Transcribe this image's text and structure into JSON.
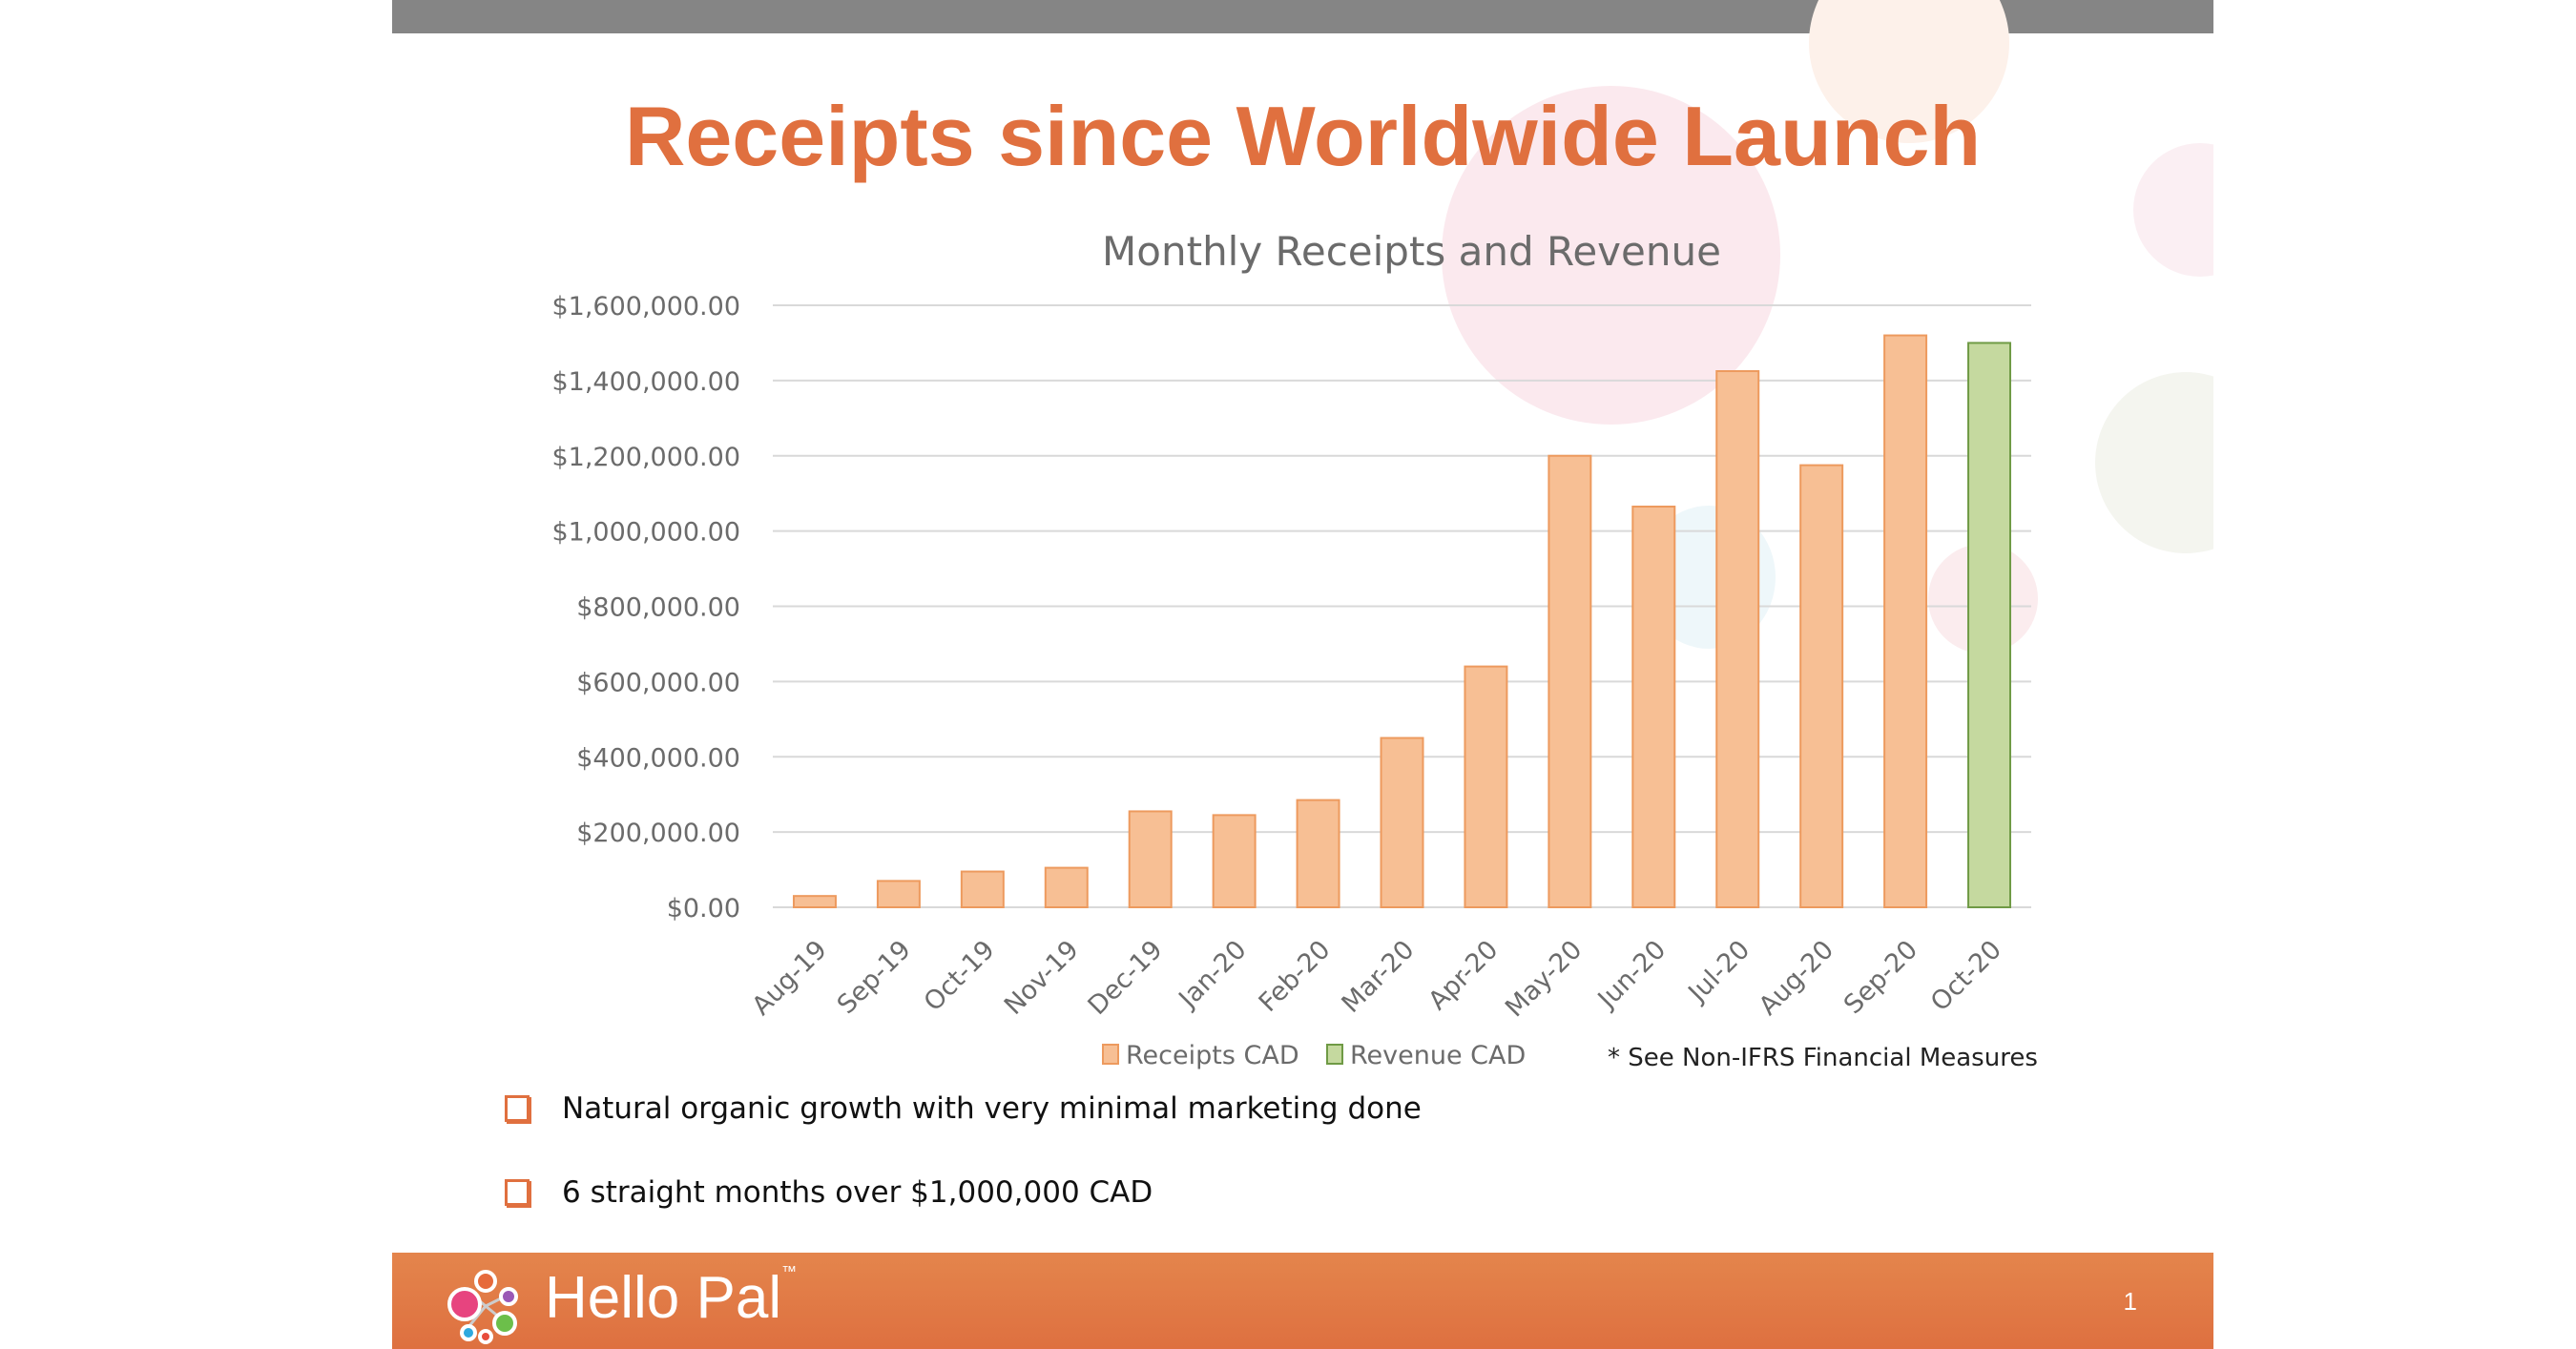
{
  "slide": {
    "title": "Receipts since Worldwide Launch",
    "footnote": "* See Non-IFRS Financial Measures",
    "bullets": [
      "Natural organic growth with very minimal marketing done",
      "6 straight months over $1,000,000 CAD"
    ],
    "brand": "Hello Pal",
    "trademark": "™",
    "page_number": "1",
    "colors": {
      "accent": "#e0703f",
      "receipts": "#f7bf94",
      "receipts_border": "#ed9a5e",
      "revenue": "#c5d99f",
      "revenue_border": "#6f9a45",
      "footer": "#e27b46"
    }
  },
  "chart_data": {
    "type": "bar",
    "title": "Monthly Receipts and Revenue",
    "categories": [
      "Aug-19",
      "Sep-19",
      "Oct-19",
      "Nov-19",
      "Dec-19",
      "Jan-20",
      "Feb-20",
      "Mar-20",
      "Apr-20",
      "May-20",
      "Jun-20",
      "Jul-20",
      "Aug-20",
      "Sep-20",
      "Oct-20"
    ],
    "series": [
      {
        "name": "Receipts CAD",
        "values": [
          30000,
          70000,
          95000,
          105000,
          255000,
          245000,
          285000,
          450000,
          640000,
          1200000,
          1065000,
          1425000,
          1175000,
          1520000,
          null
        ]
      },
      {
        "name": "Revenue CAD",
        "values": [
          null,
          null,
          null,
          null,
          null,
          null,
          null,
          null,
          null,
          null,
          null,
          null,
          null,
          null,
          1500000
        ]
      }
    ],
    "ylim": [
      0,
      1600000
    ],
    "yticks": [
      "$0.00",
      "$200,000.00",
      "$400,000.00",
      "$600,000.00",
      "$800,000.00",
      "$1,000,000.00",
      "$1,200,000.00",
      "$1,400,000.00",
      "$1,600,000.00"
    ],
    "grid": true,
    "legend": "bottom"
  }
}
